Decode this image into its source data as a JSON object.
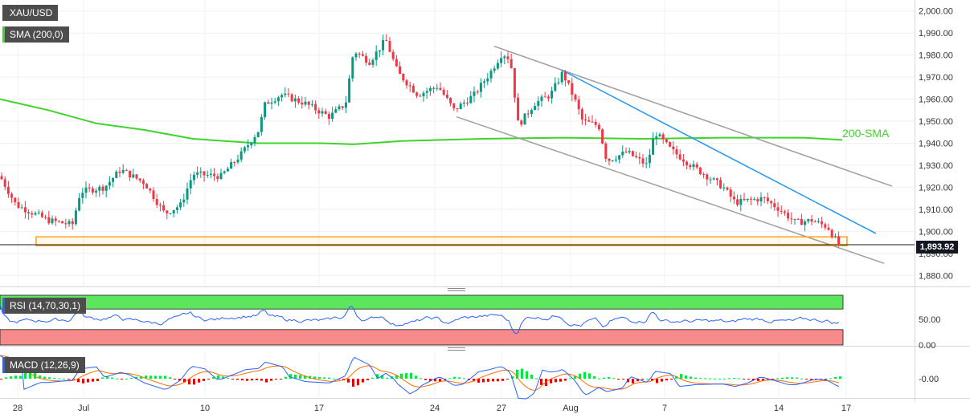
{
  "chart_data": [
    {
      "type": "candlestick",
      "symbol_label": "XAU/USD",
      "indicator_label": "SMA (200,0)",
      "annotation_label": "200-SMA",
      "last_price_label": "1,893.92",
      "last_price": 1893.92,
      "ylim": [
        1875,
        2005
      ],
      "y_ticks": [
        "2,000.00",
        "1,990.00",
        "1,980.00",
        "1,970.00",
        "1,960.00",
        "1,950.00",
        "1,940.00",
        "1,930.00",
        "1,920.00",
        "1,910.00",
        "1,900.00",
        "1,890.00",
        "1,880.00"
      ],
      "x_ticks": [
        "28",
        "Jul",
        "10",
        "17",
        "24",
        "27",
        "Aug",
        "7",
        "14",
        "17"
      ],
      "colors": {
        "up": "#089981",
        "down": "#f23645",
        "sma": "#3fd42b",
        "channel": "#9e9e9e",
        "trendline": "#2196f3",
        "zone": "#f7a21b"
      },
      "sma200": [
        [
          0,
          1960
        ],
        [
          60,
          1955
        ],
        [
          120,
          1949
        ],
        [
          180,
          1946
        ],
        [
          240,
          1942
        ],
        [
          320,
          1940
        ],
        [
          400,
          1940
        ],
        [
          440,
          1939.5
        ],
        [
          500,
          1941
        ],
        [
          600,
          1942
        ],
        [
          700,
          1942.5
        ],
        [
          800,
          1942
        ],
        [
          900,
          1942.5
        ],
        [
          1000,
          1942.5
        ],
        [
          1048,
          1941.5
        ]
      ],
      "support_zone": [
        1893.5,
        1897.5
      ]
    },
    {
      "type": "line",
      "indicator_label": "RSI (14,70,30,1)",
      "y_ticks": [
        "50.00",
        "0.00"
      ],
      "overbought": 70,
      "oversold": 30
    },
    {
      "type": "bar",
      "indicator_label": "MACD (12,26,9)",
      "y_ticks": [
        "-0.00"
      ]
    }
  ]
}
